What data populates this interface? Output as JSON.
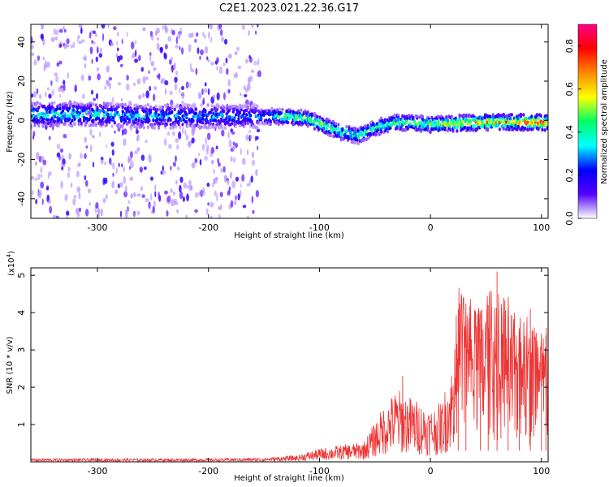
{
  "title": "C2E1.2023.021.22.36.G17",
  "chart_data": [
    {
      "type": "heatmap",
      "xlabel": "Height of straight line (km)",
      "ylabel": "Frequency (Hz)",
      "xlim": [
        -360,
        106
      ],
      "ylim": [
        -50,
        49
      ],
      "xticks": [
        -300,
        -200,
        -100,
        0,
        100
      ],
      "xtick_labels": [
        "-300",
        "-200",
        "-100",
        "0",
        "100"
      ],
      "yticks": [
        -40,
        -20,
        0,
        20,
        40
      ],
      "ytick_labels": [
        "-40",
        "-20",
        "0",
        "20",
        "40"
      ],
      "colorbar": {
        "label": "Normalized spectral amplitude",
        "range": [
          0,
          0.9
        ],
        "ticks": [
          0.0,
          0.2,
          0.4,
          0.6,
          0.8
        ],
        "tick_labels": [
          "0.0",
          "0.2",
          "0.4",
          "0.6",
          "0.8"
        ],
        "colormap": [
          "#ffffff",
          "#5500ff",
          "#0000ff",
          "#00ffff",
          "#00ff66",
          "#ffff00",
          "#ff8800",
          "#ff0000",
          "#ff0088"
        ]
      },
      "description_band": {
        "center_frequency_hz": [
          {
            "x": -350,
            "y": 3
          },
          {
            "x": -300,
            "y": 3
          },
          {
            "x": -250,
            "y": 2
          },
          {
            "x": -200,
            "y": 2
          },
          {
            "x": -160,
            "y": 2
          },
          {
            "x": -130,
            "y": 2
          },
          {
            "x": -110,
            "y": 1
          },
          {
            "x": -95,
            "y": -3
          },
          {
            "x": -80,
            "y": -6
          },
          {
            "x": -65,
            "y": -8
          },
          {
            "x": -55,
            "y": -5
          },
          {
            "x": -45,
            "y": -3
          },
          {
            "x": -30,
            "y": -1
          },
          {
            "x": 0,
            "y": -2
          },
          {
            "x": 50,
            "y": -1
          },
          {
            "x": 100,
            "y": -1
          }
        ],
        "peak_amplitude": [
          {
            "x": -350,
            "y": 0.45
          },
          {
            "x": -300,
            "y": 0.4
          },
          {
            "x": -250,
            "y": 0.35
          },
          {
            "x": -200,
            "y": 0.35
          },
          {
            "x": -160,
            "y": 0.3
          },
          {
            "x": -130,
            "y": 0.55
          },
          {
            "x": -100,
            "y": 0.6
          },
          {
            "x": -80,
            "y": 0.5
          },
          {
            "x": -60,
            "y": 0.5
          },
          {
            "x": -30,
            "y": 0.55
          },
          {
            "x": 0,
            "y": 0.6
          },
          {
            "x": 30,
            "y": 0.7
          },
          {
            "x": 60,
            "y": 0.75
          },
          {
            "x": 100,
            "y": 0.85
          }
        ],
        "noise_region_x": [
          -360,
          -155
        ]
      }
    },
    {
      "type": "line",
      "xlabel": "Height of straight line (km)",
      "ylabel": "SNR (10 * v/v)",
      "y_multiplier_label": "(x10",
      "y_multiplier_exponent": "4",
      "y_multiplier_close": ")",
      "xlim": [
        -360,
        106
      ],
      "ylim": [
        0,
        5.2
      ],
      "xticks": [
        -300,
        -200,
        -100,
        0,
        100
      ],
      "xtick_labels": [
        "-300",
        "-200",
        "-100",
        "0",
        "100"
      ],
      "yticks": [
        1,
        2,
        3,
        4,
        5
      ],
      "ytick_labels": [
        "1",
        "2",
        "3",
        "4",
        "5"
      ],
      "color": "#ee3333",
      "envelope": [
        {
          "x": -360,
          "y": 0.05
        },
        {
          "x": -300,
          "y": 0.05
        },
        {
          "x": -200,
          "y": 0.05
        },
        {
          "x": -150,
          "y": 0.06
        },
        {
          "x": -120,
          "y": 0.1
        },
        {
          "x": -100,
          "y": 0.2
        },
        {
          "x": -80,
          "y": 0.25
        },
        {
          "x": -60,
          "y": 0.3
        },
        {
          "x": -50,
          "y": 0.6
        },
        {
          "x": -40,
          "y": 0.9
        },
        {
          "x": -30,
          "y": 1.1
        },
        {
          "x": -20,
          "y": 1.0
        },
        {
          "x": -10,
          "y": 0.9
        },
        {
          "x": 0,
          "y": 0.8
        },
        {
          "x": 10,
          "y": 0.9
        },
        {
          "x": 20,
          "y": 1.5
        },
        {
          "x": 25,
          "y": 2.6
        },
        {
          "x": 40,
          "y": 2.4
        },
        {
          "x": 60,
          "y": 2.5
        },
        {
          "x": 80,
          "y": 2.2
        },
        {
          "x": 100,
          "y": 2.0
        },
        {
          "x": 106,
          "y": 2.0
        }
      ],
      "spikes": [
        {
          "x": -25,
          "y": 2.3
        },
        {
          "x": 25,
          "y": 4.1
        },
        {
          "x": 32,
          "y": 3.6
        },
        {
          "x": 45,
          "y": 3.3
        },
        {
          "x": 52,
          "y": 4.2
        },
        {
          "x": 60,
          "y": 5.1
        },
        {
          "x": 70,
          "y": 3.9
        },
        {
          "x": 80,
          "y": 3.5
        },
        {
          "x": 90,
          "y": 4.1
        },
        {
          "x": 100,
          "y": 3.2
        },
        {
          "x": 104,
          "y": 3.4
        }
      ]
    }
  ]
}
